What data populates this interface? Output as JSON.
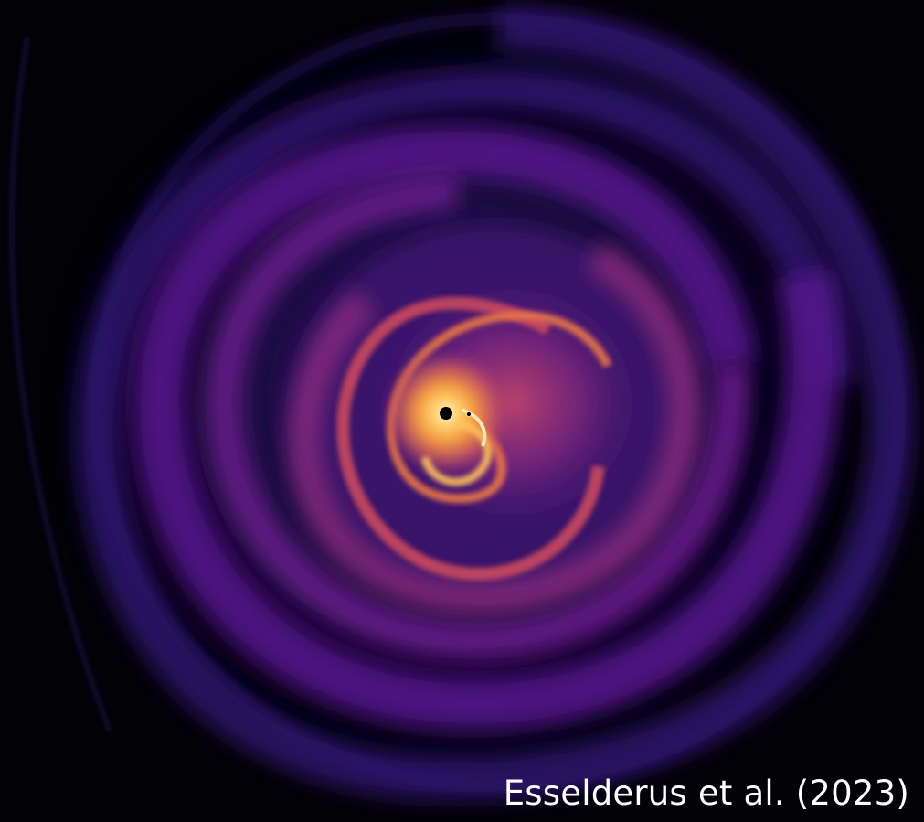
{
  "image": {
    "credit": "Esselderus et al. (2023)",
    "colors": {
      "background": "#020207",
      "outer_arm": "#2a1266",
      "mid_arm": "#5c1a8a",
      "inner_arm": "#c74a6b",
      "core_glow": "#ffd36b",
      "core_white": "#fff6d8",
      "central_star": "#000000"
    }
  }
}
